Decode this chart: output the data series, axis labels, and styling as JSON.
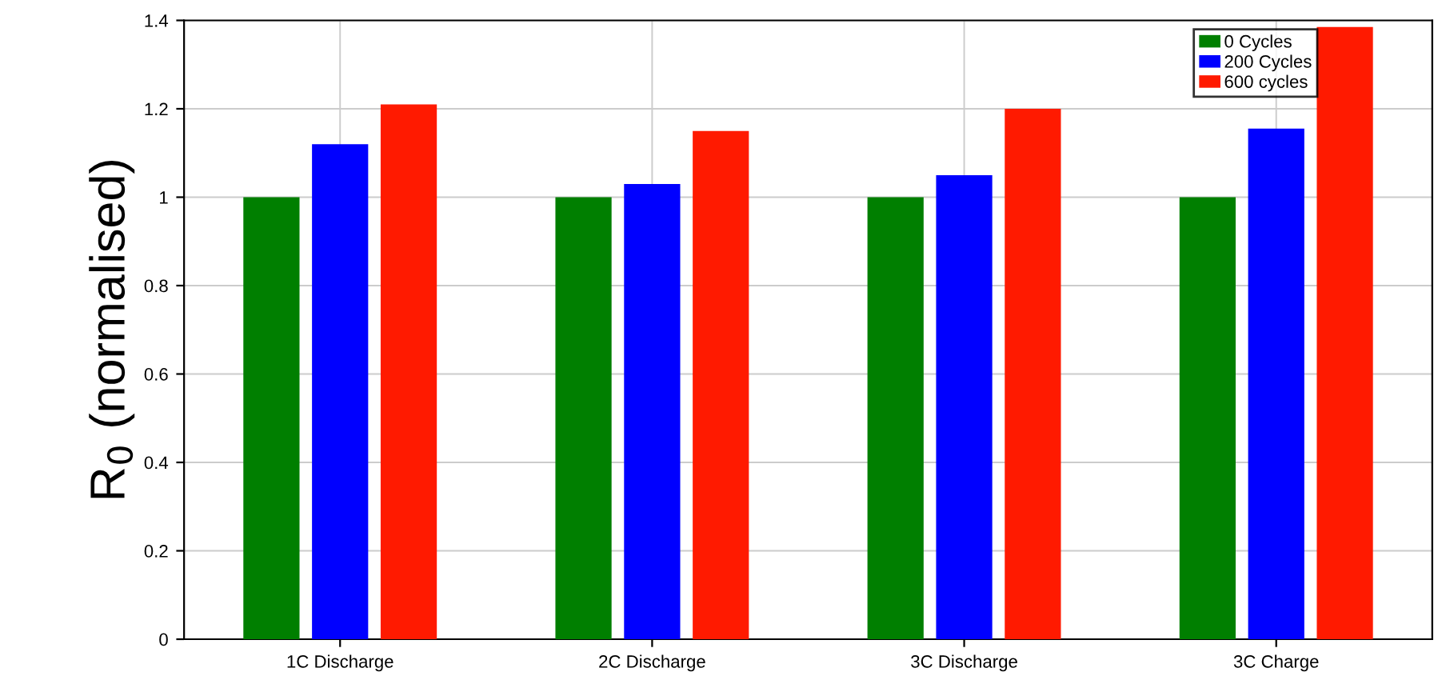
{
  "chart_data": {
    "type": "bar",
    "ylabel": "R$_{0}$ (normalised)",
    "categories": [
      "1C Discharge",
      "2C Discharge",
      "3C Discharge",
      "3C Charge"
    ],
    "series": [
      {
        "name": "0 Cycles",
        "color": "#007f00",
        "values": [
          1,
          1,
          1,
          1
        ]
      },
      {
        "name": "200 Cycles",
        "color": "#0000ff",
        "values": [
          1.12,
          1.03,
          1.05,
          1.155
        ]
      },
      {
        "name": "600 cycles",
        "color": "#ff1a00",
        "values": [
          1.21,
          1.15,
          1.2,
          1.385
        ]
      }
    ],
    "ylim": [
      0,
      1.4
    ],
    "yticks": [
      0,
      0.2,
      0.4,
      0.6,
      0.8,
      1,
      1.2,
      1.4
    ],
    "grid": true,
    "legend": "top right"
  }
}
